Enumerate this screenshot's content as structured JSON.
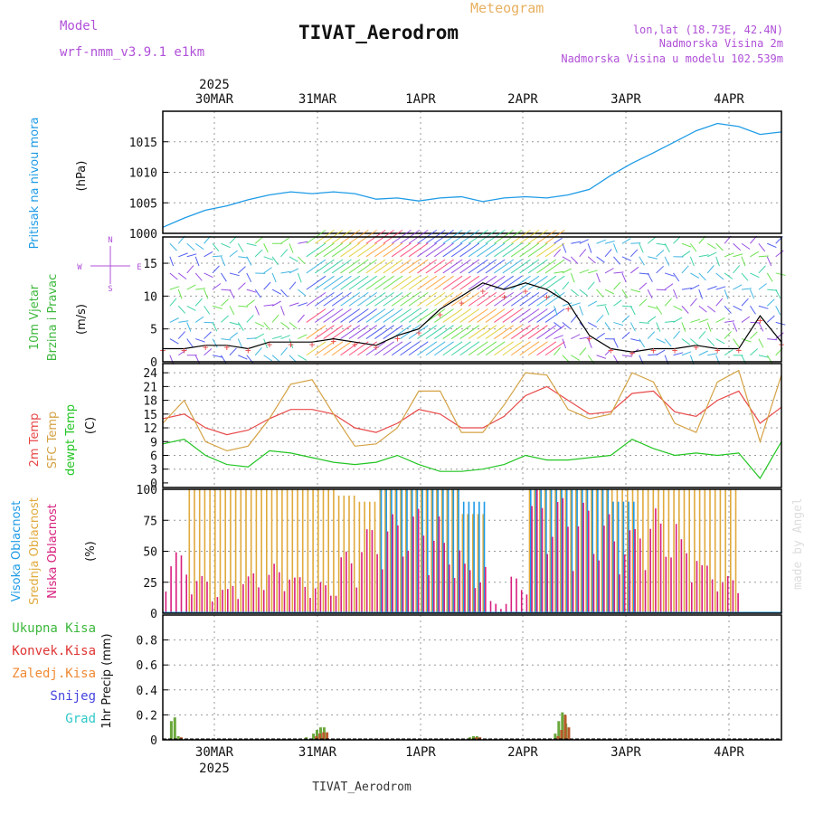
{
  "header": {
    "title": "TIVAT_Aerodrom",
    "meteogram": "Meteogram",
    "model_label": "Model",
    "model_name": "wrf-nmm_v3.9.1 e1km",
    "lonlat": "lon,lat (18.73E, 42.4N)",
    "elevation": "Nadmorska Visina 2m",
    "model_elevation": "Nadmorska Visina u modelu 102.539m",
    "footer": "TIVAT_Aerodrom",
    "credit": "made by Angel",
    "year": "2025"
  },
  "colors": {
    "pressure": "#1e9be6",
    "temp2m": "#e84848",
    "sfctemp": "#d4a244",
    "dewpoint": "#22c522",
    "cloud_high": "#1e9be6",
    "cloud_mid": "#e0aa3c",
    "cloud_low": "#d81f7e",
    "precip_total": "#3cb83c",
    "precip_conv": "#e03434",
    "precip_frozen": "#f08a34",
    "snow": "#4444e0",
    "graupel": "#30c8c8",
    "purple": "#b050d8",
    "orange": "#e8b060"
  },
  "chart_data": [
    {
      "panel": "pressure",
      "type": "line",
      "ylabel_left": "Pritisak na nivou mora",
      "ylabel_unit": "(hPa)",
      "ylim": [
        1000,
        1020
      ],
      "yticks": [
        "1000",
        "1005",
        "1010",
        "1015"
      ],
      "xlabels_top": [
        "30MAR",
        "31MAR",
        "1APR",
        "2APR",
        "3APR",
        "4APR"
      ],
      "grid": true,
      "x": [
        0,
        6,
        12,
        18,
        24,
        30,
        36,
        42,
        48,
        54,
        60,
        66,
        72,
        78,
        84,
        90,
        96,
        102,
        108,
        114,
        120,
        126,
        132,
        138,
        144,
        150,
        156,
        162,
        168,
        174
      ],
      "values": [
        1001,
        1002.5,
        1003.8,
        1004.5,
        1005.5,
        1006.3,
        1006.8,
        1006.5,
        1006.8,
        1006.5,
        1005.6,
        1005.8,
        1005.3,
        1005.8,
        1006.0,
        1005.2,
        1005.8,
        1006.0,
        1005.8,
        1006.3,
        1007.2,
        1009.5,
        1011.5,
        1013.2,
        1015.0,
        1016.8,
        1018.0,
        1017.5,
        1016.2,
        1016.6
      ]
    },
    {
      "panel": "wind",
      "type": "line",
      "ylabel_left_1": "10m Vjetar",
      "ylabel_left_2": "Brzina i Pravac",
      "ylabel_unit": "(m/s)",
      "compass_n": "N",
      "compass_s": "S",
      "compass_w": "W",
      "compass_e": "E",
      "ylim": [
        0,
        19
      ],
      "yticks": [
        "0",
        "5",
        "10",
        "15"
      ],
      "grid": true,
      "x": [
        0,
        6,
        12,
        18,
        24,
        30,
        36,
        42,
        48,
        54,
        60,
        66,
        72,
        78,
        84,
        90,
        96,
        102,
        108,
        114,
        120,
        126,
        132,
        138,
        144,
        150,
        156,
        162,
        168,
        174
      ],
      "values": [
        2,
        2,
        2.5,
        2.5,
        2,
        3,
        3,
        3,
        3.5,
        3,
        2.5,
        4,
        5,
        8,
        10,
        12,
        11,
        12,
        11,
        9,
        4,
        2,
        1.5,
        2,
        2,
        2.5,
        2,
        2,
        7,
        3
      ]
    },
    {
      "panel": "temperature",
      "type": "line",
      "ylabel_left_1": "2m Temp",
      "ylabel_left_2": "SFC Temp",
      "ylabel_left_3": "dewpt Temp",
      "ylabel_unit": "(C)",
      "ylim": [
        -1,
        26
      ],
      "yticks": [
        "0",
        "3",
        "6",
        "9",
        "12",
        "15",
        "18",
        "21",
        "24"
      ],
      "grid": true,
      "x": [
        0,
        6,
        12,
        18,
        24,
        30,
        36,
        42,
        48,
        54,
        60,
        66,
        72,
        78,
        84,
        90,
        96,
        102,
        108,
        114,
        120,
        126,
        132,
        138,
        144,
        150,
        156,
        162,
        168,
        174
      ],
      "series": [
        {
          "key": "temp2m",
          "values": [
            14,
            15,
            12,
            10.5,
            11.5,
            14,
            16,
            16,
            15,
            12,
            11,
            13,
            16,
            15,
            12,
            12,
            14.5,
            19,
            21,
            18,
            15,
            15.5,
            19.5,
            20,
            15.5,
            14.5,
            18,
            20,
            13,
            16.5
          ]
        },
        {
          "key": "sfctemp",
          "values": [
            13,
            18,
            9,
            7,
            8,
            14,
            21.5,
            22.5,
            15,
            8,
            8.5,
            12,
            20,
            20,
            11,
            11,
            17,
            24,
            23.5,
            16,
            14,
            15,
            24,
            22,
            13,
            11,
            22,
            24.5,
            9,
            23.5
          ]
        },
        {
          "key": "dewpoint",
          "values": [
            8.5,
            9.5,
            6,
            4,
            3.5,
            7,
            6.5,
            5.5,
            4.5,
            4,
            4.5,
            6,
            4,
            2.5,
            2.5,
            3,
            4,
            6,
            5,
            5,
            5.5,
            6,
            9.5,
            7.5,
            6,
            6.5,
            6,
            6.5,
            1,
            9
          ]
        }
      ]
    },
    {
      "panel": "cloud",
      "type": "bar",
      "ylabel_left_1": "Visoka Oblacnost",
      "ylabel_left_2": "Srednja Oblacnost",
      "ylabel_left_3": "Niska Oblacnost",
      "ylabel_unit": "(%)",
      "ylim": [
        0,
        100
      ],
      "yticks": [
        "0",
        "25",
        "50",
        "75",
        "100"
      ],
      "grid": true,
      "x": [
        0,
        6,
        12,
        18,
        24,
        30,
        36,
        42,
        48,
        54,
        60,
        66,
        72,
        78,
        84,
        90,
        96,
        102,
        108,
        114,
        120,
        126,
        132,
        138,
        144,
        150,
        156,
        162,
        168,
        174
      ],
      "series": [
        {
          "key": "cloud_mid",
          "values": [
            0,
            100,
            100,
            100,
            100,
            100,
            100,
            100,
            95,
            90,
            100,
            100,
            100,
            100,
            80,
            0,
            0,
            100,
            100,
            100,
            100,
            100,
            100,
            100,
            100,
            100,
            100,
            0,
            0,
            0
          ]
        },
        {
          "key": "cloud_high",
          "values": [
            0,
            0,
            0,
            0,
            0,
            0,
            0,
            0,
            0,
            0,
            100,
            100,
            100,
            100,
            90,
            0,
            0,
            100,
            100,
            100,
            100,
            90,
            0,
            0,
            0,
            0,
            0,
            0,
            0,
            0
          ]
        },
        {
          "key": "cloud_low",
          "values": [
            50,
            30,
            20,
            30,
            35,
            40,
            30,
            25,
            50,
            70,
            80,
            85,
            80,
            60,
            40,
            10,
            30,
            100,
            95,
            90,
            80,
            70,
            85,
            80,
            60,
            40,
            30,
            0,
            0,
            0
          ]
        }
      ]
    },
    {
      "panel": "precip",
      "type": "bar",
      "ylabel_left_1": "Ukupna Kisa",
      "ylabel_left_2": "Konvek.Kisa",
      "ylabel_left_3": "Zaledj.Kisa",
      "ylabel_left_4": "Snijeg",
      "ylabel_left_5": "Grad",
      "ylabel_unit": "1hr Precip (mm)",
      "ylim": [
        0,
        1
      ],
      "yticks": [
        "0",
        "0.2",
        "0.4",
        "0.6",
        "0.8"
      ],
      "xlabels_bottom": [
        "30MAR",
        "31MAR",
        "1APR",
        "2APR",
        "3APR",
        "4APR"
      ],
      "grid": true,
      "x": [
        2,
        3,
        4,
        5,
        40,
        42,
        43,
        44,
        45,
        86,
        87,
        88,
        110,
        111,
        112,
        113,
        114,
        115
      ],
      "series": [
        {
          "key": "precip_total",
          "values": [
            0.15,
            0.18,
            0.03,
            0.0,
            0.02,
            0.05,
            0.08,
            0.1,
            0.1,
            0.02,
            0.03,
            0.03,
            0.05,
            0.15,
            0.22,
            0.13,
            0.0,
            0.0
          ]
        },
        {
          "key": "precip_conv",
          "values": [
            0.0,
            0.0,
            0.02,
            0.0,
            0.0,
            0.03,
            0.05,
            0.06,
            0.06,
            0.01,
            0.02,
            0.02,
            0.03,
            0.08,
            0.2,
            0.1,
            0.0,
            0.0
          ]
        }
      ]
    }
  ]
}
